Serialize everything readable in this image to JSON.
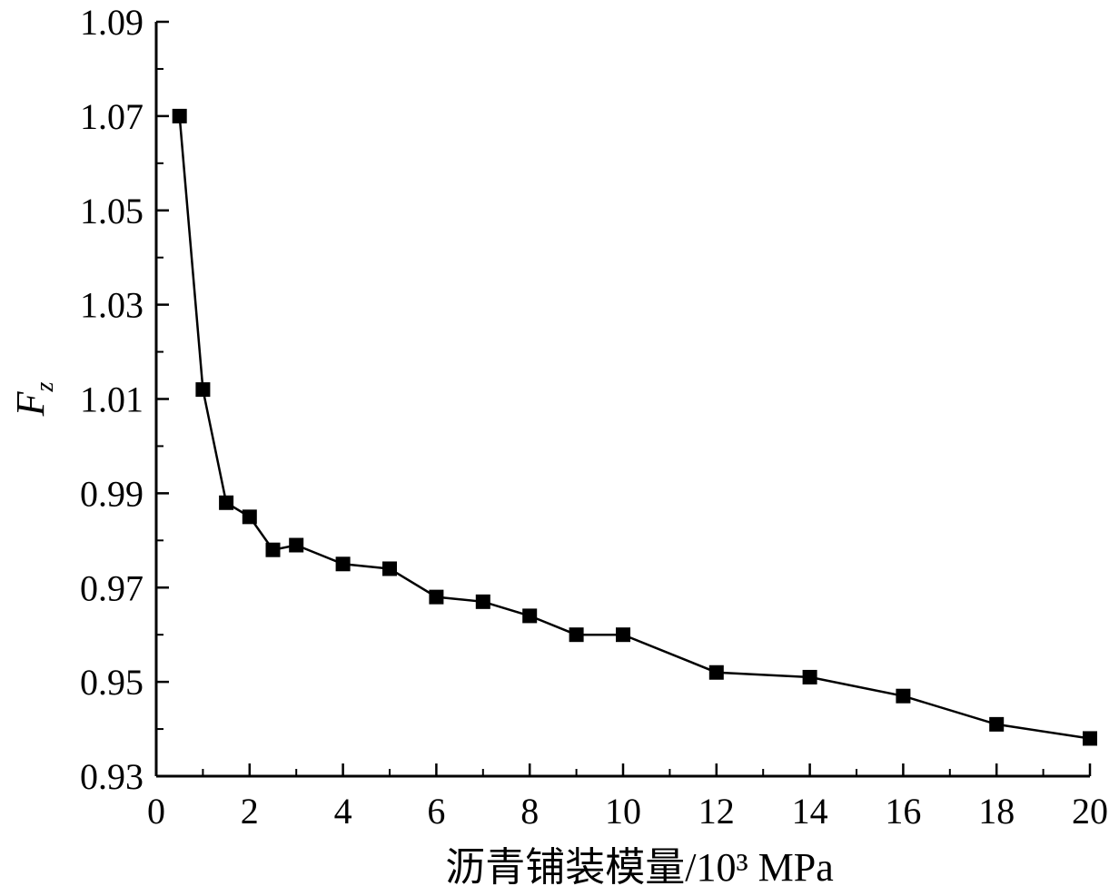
{
  "chart_data": {
    "type": "line",
    "title": "",
    "xlabel": "沥青铺装模量/10³ MPa",
    "ylabel": {
      "main": "F",
      "sub": "z"
    },
    "xlim": [
      0,
      20
    ],
    "ylim": [
      0.93,
      1.09
    ],
    "x_ticks": [
      "0",
      "2",
      "4",
      "6",
      "8",
      "10",
      "12",
      "14",
      "16",
      "18",
      "20"
    ],
    "y_ticks": [
      "0.93",
      "0.95",
      "0.97",
      "0.99",
      "1.01",
      "1.03",
      "1.05",
      "1.07",
      "1.09"
    ],
    "grid": false,
    "legend": "none",
    "marker": "square",
    "color": "#000000",
    "series": [
      {
        "x": [
          0.5,
          1,
          1.5,
          2,
          2.5,
          3,
          4,
          5,
          6,
          7,
          8,
          9,
          10,
          12,
          14,
          16,
          18,
          20
        ],
        "values": [
          1.07,
          1.012,
          0.988,
          0.985,
          0.978,
          0.979,
          0.975,
          0.974,
          0.968,
          0.967,
          0.964,
          0.96,
          0.96,
          0.952,
          0.951,
          0.947,
          0.941,
          0.938
        ]
      }
    ]
  }
}
